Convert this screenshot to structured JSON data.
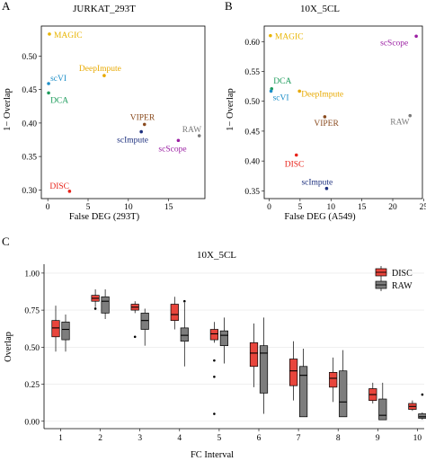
{
  "panels": [
    {
      "panel_label": "A",
      "chart_data": {
        "type": "scatter",
        "title": "JURKAT_293T",
        "xlabel": "False DEG (293T)",
        "ylabel": "1− Overlap",
        "xlim": [
          -0.8,
          19.5
        ],
        "ylim": [
          0.287,
          0.545
        ],
        "xticks": [
          0,
          5,
          10,
          15
        ],
        "yticks": [
          0.3,
          0.35,
          0.4,
          0.45,
          0.5
        ],
        "ytick_labels": [
          "0.30",
          "0.35",
          "0.40",
          "0.45",
          "0.50"
        ],
        "grid": false,
        "points": [
          {
            "name": "MAGIC",
            "x": 0.2,
            "y": 0.533,
            "color": "#e8b400"
          },
          {
            "name": "DeepImpute",
            "x": 7.0,
            "y": 0.471,
            "color": "#e8a900"
          },
          {
            "name": "scVI",
            "x": 0.1,
            "y": 0.459,
            "color": "#1f8fc8"
          },
          {
            "name": "DCA",
            "x": 0.1,
            "y": 0.445,
            "color": "#1e9c5c"
          },
          {
            "name": "VIPER",
            "x": 12.0,
            "y": 0.398,
            "color": "#8a4b1f"
          },
          {
            "name": "scImpute",
            "x": 11.6,
            "y": 0.387,
            "color": "#1c2f7e"
          },
          {
            "name": "RAW",
            "x": 18.8,
            "y": 0.381,
            "color": "#7a7a7a"
          },
          {
            "name": "scScope",
            "x": 16.2,
            "y": 0.374,
            "color": "#9b1fa3"
          },
          {
            "name": "DISC",
            "x": 2.7,
            "y": 0.298,
            "color": "#e8231a"
          }
        ]
      }
    },
    {
      "panel_label": "B",
      "chart_data": {
        "type": "scatter",
        "title": "10X_5CL",
        "xlabel": "False DEG (A549)",
        "ylabel": "1− Overlap",
        "xlim": [
          -0.8,
          24.8
        ],
        "ylim": [
          0.337,
          0.626
        ],
        "xticks": [
          0,
          5,
          10,
          15,
          20,
          25
        ],
        "yticks": [
          0.35,
          0.4,
          0.45,
          0.5,
          0.55,
          0.6
        ],
        "ytick_labels": [
          "0.35",
          "0.40",
          "0.45",
          "0.50",
          "0.55",
          "0.60"
        ],
        "grid": false,
        "points": [
          {
            "name": "MAGIC",
            "x": 0.2,
            "y": 0.61,
            "color": "#e8b400"
          },
          {
            "name": "scScope",
            "x": 23.8,
            "y": 0.609,
            "color": "#9b1fa3"
          },
          {
            "name": "DCA",
            "x": 0.4,
            "y": 0.521,
            "color": "#1e9c5c"
          },
          {
            "name": "DeepImpute",
            "x": 4.9,
            "y": 0.517,
            "color": "#e8a900"
          },
          {
            "name": "scVI",
            "x": 0.3,
            "y": 0.517,
            "color": "#1f8fc8"
          },
          {
            "name": "VIPER",
            "x": 9.0,
            "y": 0.474,
            "color": "#8a4b1f"
          },
          {
            "name": "RAW",
            "x": 22.8,
            "y": 0.476,
            "color": "#7a7a7a"
          },
          {
            "name": "DISC",
            "x": 4.4,
            "y": 0.41,
            "color": "#e8231a"
          },
          {
            "name": "scImpute",
            "x": 9.3,
            "y": 0.354,
            "color": "#1c2f7e"
          }
        ]
      }
    },
    {
      "panel_label": "C",
      "chart_data": {
        "type": "box",
        "title": "10X_5CL",
        "xlabel": "FC Interval",
        "ylabel": "Overlap",
        "ylim": [
          -0.05,
          1.06
        ],
        "yticks": [
          0.0,
          0.25,
          0.5,
          0.75,
          1.0
        ],
        "ytick_labels": [
          "0.00",
          "0.25",
          "0.50",
          "0.75",
          "1.00"
        ],
        "categories": [
          "1",
          "2",
          "3",
          "4",
          "5",
          "6",
          "7",
          "8",
          "9",
          "10"
        ],
        "grid": true,
        "legend_position": "top-right",
        "series": [
          {
            "name": "DISC",
            "color": "#e8453c",
            "boxes": [
              {
                "min": 0.47,
                "q1": 0.57,
                "median": 0.63,
                "q3": 0.68,
                "max": 0.78,
                "outliers": []
              },
              {
                "min": 0.77,
                "q1": 0.81,
                "median": 0.83,
                "q3": 0.85,
                "max": 0.89,
                "outliers": [
                  0.76
                ]
              },
              {
                "min": 0.73,
                "q1": 0.75,
                "median": 0.77,
                "q3": 0.79,
                "max": 0.81,
                "outliers": [
                  0.57
                ]
              },
              {
                "min": 0.62,
                "q1": 0.68,
                "median": 0.72,
                "q3": 0.79,
                "max": 0.84,
                "outliers": []
              },
              {
                "min": 0.53,
                "q1": 0.55,
                "median": 0.59,
                "q3": 0.62,
                "max": 0.67,
                "outliers": [
                  0.41,
                  0.3,
                  0.05
                ]
              },
              {
                "min": 0.23,
                "q1": 0.37,
                "median": 0.46,
                "q3": 0.53,
                "max": 0.66,
                "outliers": []
              },
              {
                "min": 0.14,
                "q1": 0.24,
                "median": 0.34,
                "q3": 0.42,
                "max": 0.54,
                "outliers": []
              },
              {
                "min": 0.13,
                "q1": 0.23,
                "median": 0.29,
                "q3": 0.33,
                "max": 0.43,
                "outliers": []
              },
              {
                "min": 0.12,
                "q1": 0.14,
                "median": 0.18,
                "q3": 0.22,
                "max": 0.26,
                "outliers": []
              },
              {
                "min": 0.07,
                "q1": 0.08,
                "median": 0.1,
                "q3": 0.12,
                "max": 0.14,
                "outliers": []
              }
            ]
          },
          {
            "name": "RAW",
            "color": "#7d7d7d",
            "boxes": [
              {
                "min": 0.47,
                "q1": 0.55,
                "median": 0.62,
                "q3": 0.67,
                "max": 0.72,
                "outliers": []
              },
              {
                "min": 0.69,
                "q1": 0.73,
                "median": 0.81,
                "q3": 0.84,
                "max": 0.89,
                "outliers": []
              },
              {
                "min": 0.51,
                "q1": 0.62,
                "median": 0.68,
                "q3": 0.73,
                "max": 0.76,
                "outliers": []
              },
              {
                "min": 0.37,
                "q1": 0.54,
                "median": 0.58,
                "q3": 0.63,
                "max": 0.8,
                "outliers": [
                  0.81
                ]
              },
              {
                "min": 0.39,
                "q1": 0.51,
                "median": 0.58,
                "q3": 0.61,
                "max": 0.7,
                "outliers": []
              },
              {
                "min": 0.05,
                "q1": 0.19,
                "median": 0.46,
                "q3": 0.51,
                "max": 0.7,
                "outliers": []
              },
              {
                "min": 0.03,
                "q1": 0.03,
                "median": 0.31,
                "q3": 0.37,
                "max": 0.49,
                "outliers": []
              },
              {
                "min": 0.03,
                "q1": 0.03,
                "median": 0.13,
                "q3": 0.34,
                "max": 0.48,
                "outliers": []
              },
              {
                "min": 0.01,
                "q1": 0.01,
                "median": 0.04,
                "q3": 0.15,
                "max": 0.26,
                "outliers": []
              },
              {
                "min": 0.01,
                "q1": 0.02,
                "median": 0.03,
                "q3": 0.05,
                "max": 0.06,
                "outliers": [
                  0.18
                ]
              }
            ]
          }
        ]
      }
    }
  ]
}
